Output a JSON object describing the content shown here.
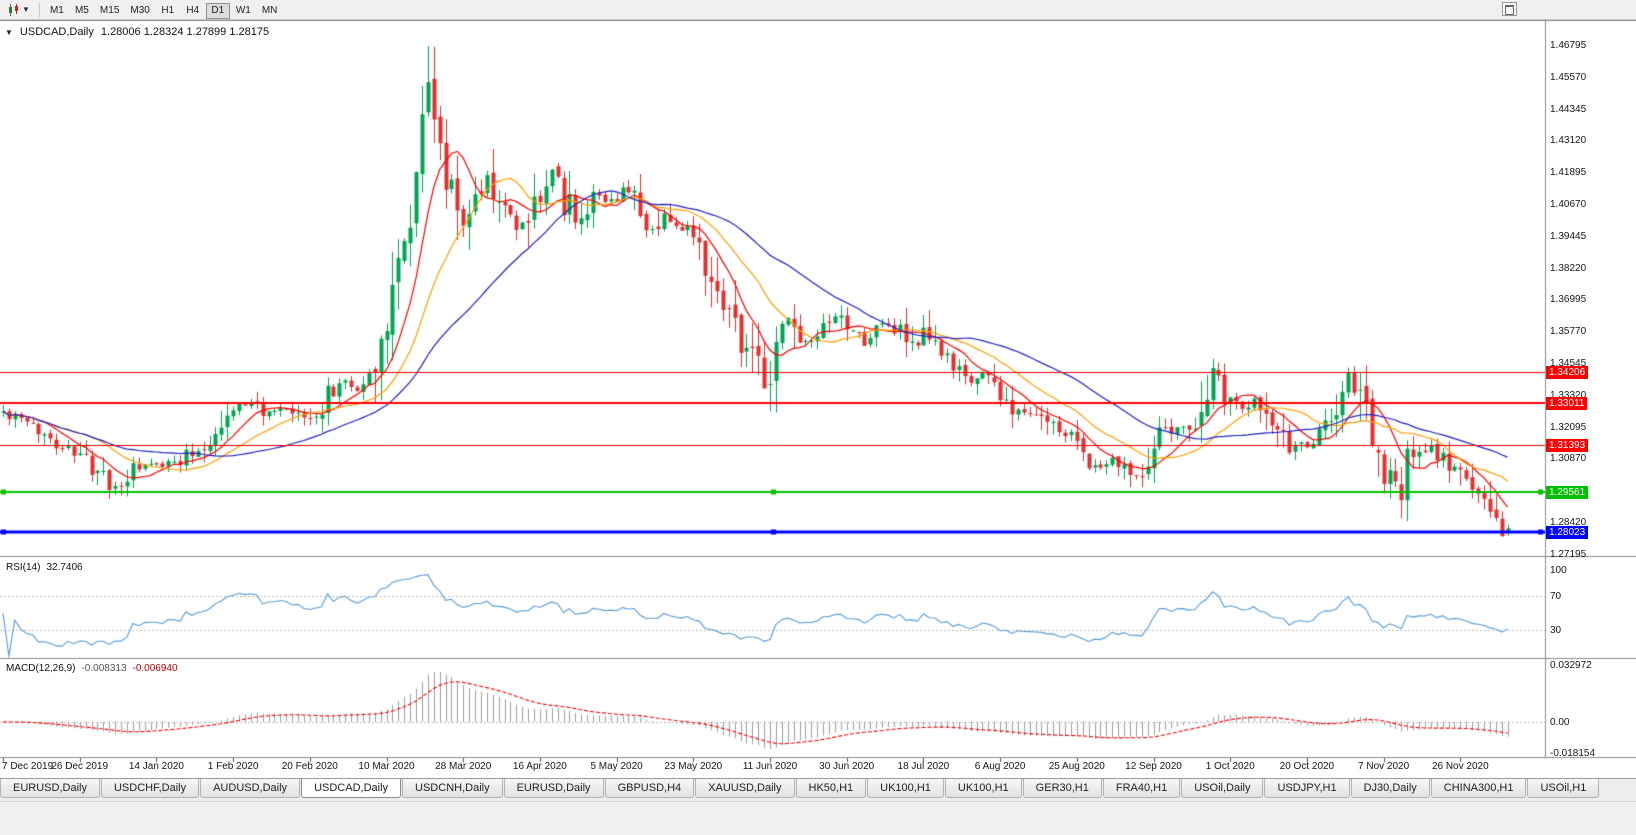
{
  "toolbar": {
    "chart_type_icon": "candlestick-chart-icon",
    "dropdown_icon": "chevron-down-icon",
    "timeframes": [
      "M1",
      "M5",
      "M15",
      "M30",
      "H1",
      "H4",
      "D1",
      "W1",
      "MN"
    ],
    "active_timeframe": "D1",
    "window_button_icon": "window-icon"
  },
  "chart": {
    "legend_symbol": "USDCAD,Daily",
    "legend_ohlc": "1.28006 1.28324 1.27899 1.28175",
    "one_click_icon": "triangle-down-icon"
  },
  "indicators": {
    "rsi": {
      "label": "RSI(14)",
      "value": "32.7406",
      "axis_labels": [
        "100",
        "70",
        "30"
      ],
      "axis_values": [
        100,
        70,
        30
      ],
      "levels": [
        70,
        30
      ],
      "range": [
        0,
        112
      ],
      "line_color": "#5b9bd5"
    },
    "macd": {
      "label": "MACD(12,26,9)",
      "value_main": "-0.008313",
      "value_signal": "-0.006940",
      "axis_labels": [
        "0.032972",
        "0.00",
        "-0.018154"
      ],
      "axis_values": [
        0.032972,
        0,
        -0.018154
      ],
      "range": [
        -0.0193,
        0.0355
      ],
      "histogram_color": "#9e9e9e",
      "signal_color": "#ff0000",
      "fast": 12,
      "slow": 26,
      "signal_period": 9
    }
  },
  "chart_data": {
    "type": "candlestick",
    "symbol": "USDCAD",
    "timeframe": "Daily",
    "up_color": "#00a651",
    "down_color": "#e53030",
    "num_candles": 256,
    "candles_per_label": 13,
    "last_candle": {
      "open": 1.28006,
      "high": 1.28324,
      "low": 1.27899,
      "close": 1.28175
    },
    "extreme_high": [
      72,
      1.4676
    ],
    "extreme_low_early": [
      18,
      1.2952
    ],
    "price_axis": {
      "labels": [
        "1.46795",
        "1.45570",
        "1.44345",
        "1.43120",
        "1.41895",
        "1.40670",
        "1.39445",
        "1.38220",
        "1.36995",
        "1.35770",
        "1.34545",
        "1.33320",
        "1.32095",
        "1.30870",
        "1.29645",
        "1.28420",
        "1.27195"
      ],
      "top": 1.4757,
      "bottom": 1.2715
    },
    "x_axis_dates": [
      "7 Dec 2019",
      "26 Dec 2019",
      "14 Jan 2020",
      "1 Feb 2020",
      "20 Feb 2020",
      "10 Mar 2020",
      "28 Mar 2020",
      "16 Apr 2020",
      "5 May 2020",
      "23 May 2020",
      "11 Jun 2020",
      "30 Jun 2020",
      "18 Jul 2020",
      "6 Aug 2020",
      "25 Aug 2020",
      "12 Sep 2020",
      "1 Oct 2020",
      "20 Oct 2020",
      "7 Nov 2020",
      "26 Nov 2020"
    ],
    "moving_averages": [
      {
        "name": "fast-ma",
        "period": 8,
        "color": "#ff0000"
      },
      {
        "name": "medium-ma",
        "period": 17,
        "color": "#ffa000"
      },
      {
        "name": "slow-ma",
        "period": 34,
        "color": "#2222cc"
      }
    ],
    "hlines": [
      {
        "price": 1.34206,
        "label": "1.34206",
        "color": "#ff0000",
        "width": 1,
        "selected": false
      },
      {
        "price": 1.33011,
        "label": "1.33011",
        "color": "#ff0000",
        "width": 2,
        "selected": false
      },
      {
        "price": 1.31393,
        "label": "1.31393",
        "color": "#ff0000",
        "width": 1,
        "selected": false
      },
      {
        "price": 1.29561,
        "label": "1.29561",
        "color": "#00c000",
        "width": 2,
        "selected": true
      },
      {
        "price": 1.28023,
        "label": "1.28023",
        "color": "#0000ff",
        "width": 3,
        "selected": true
      }
    ],
    "close_anchors": [
      [
        0,
        1.3265
      ],
      [
        4,
        1.322
      ],
      [
        8,
        1.3165
      ],
      [
        13,
        1.3095
      ],
      [
        16,
        1.303
      ],
      [
        18,
        1.2965
      ],
      [
        20,
        1.299
      ],
      [
        23,
        1.3055
      ],
      [
        26,
        1.306
      ],
      [
        30,
        1.3085
      ],
      [
        34,
        1.314
      ],
      [
        37,
        1.3215
      ],
      [
        39,
        1.329
      ],
      [
        42,
        1.33
      ],
      [
        45,
        1.3255
      ],
      [
        48,
        1.327
      ],
      [
        52,
        1.323
      ],
      [
        54,
        1.33
      ],
      [
        57,
        1.3385
      ],
      [
        60,
        1.335
      ],
      [
        62,
        1.3395
      ],
      [
        64,
        1.356
      ],
      [
        66,
        1.3745
      ],
      [
        68,
        1.392
      ],
      [
        70,
        1.418
      ],
      [
        71,
        1.444
      ],
      [
        72,
        1.456
      ],
      [
        73,
        1.439
      ],
      [
        74,
        1.429
      ],
      [
        75,
        1.408
      ],
      [
        76,
        1.416
      ],
      [
        78,
        1.399
      ],
      [
        80,
        1.409
      ],
      [
        82,
        1.4175
      ],
      [
        84,
        1.408
      ],
      [
        86,
        1.401
      ],
      [
        88,
        1.3975
      ],
      [
        90,
        1.408
      ],
      [
        93,
        1.42
      ],
      [
        95,
        1.409
      ],
      [
        97,
        1.399
      ],
      [
        99,
        1.406
      ],
      [
        101,
        1.411
      ],
      [
        104,
        1.406
      ],
      [
        106,
        1.412
      ],
      [
        108,
        1.402
      ],
      [
        110,
        1.397
      ],
      [
        112,
        1.404
      ],
      [
        114,
        1.396
      ],
      [
        117,
        1.3975
      ],
      [
        119,
        1.386
      ],
      [
        121,
        1.376
      ],
      [
        123,
        1.367
      ],
      [
        125,
        1.356
      ],
      [
        127,
        1.347
      ],
      [
        129,
        1.3385
      ],
      [
        130,
        1.3375
      ],
      [
        131,
        1.3565
      ],
      [
        133,
        1.362
      ],
      [
        135,
        1.354
      ],
      [
        137,
        1.3525
      ],
      [
        139,
        1.357
      ],
      [
        141,
        1.3625
      ],
      [
        143,
        1.358
      ],
      [
        146,
        1.3535
      ],
      [
        149,
        1.3605
      ],
      [
        152,
        1.3575
      ],
      [
        155,
        1.3495
      ],
      [
        156,
        1.356
      ],
      [
        158,
        1.3505
      ],
      [
        161,
        1.3435
      ],
      [
        164,
        1.338
      ],
      [
        166,
        1.3425
      ],
      [
        169,
        1.333
      ],
      [
        172,
        1.3255
      ],
      [
        175,
        1.327
      ],
      [
        178,
        1.3205
      ],
      [
        181,
        1.317
      ],
      [
        182,
        1.3155
      ],
      [
        184,
        1.3085
      ],
      [
        186,
        1.3055
      ],
      [
        188,
        1.3095
      ],
      [
        190,
        1.306
      ],
      [
        192,
        1.3025
      ],
      [
        195,
        1.316
      ],
      [
        197,
        1.3195
      ],
      [
        199,
        1.3215
      ],
      [
        201,
        1.3185
      ],
      [
        203,
        1.33
      ],
      [
        205,
        1.3415
      ],
      [
        206,
        1.338
      ],
      [
        208,
        1.331
      ],
      [
        210,
        1.3285
      ],
      [
        212,
        1.3315
      ],
      [
        214,
        1.3245
      ],
      [
        216,
        1.3185
      ],
      [
        218,
        1.3125
      ],
      [
        220,
        1.3155
      ],
      [
        221,
        1.3125
      ],
      [
        223,
        1.3185
      ],
      [
        225,
        1.3235
      ],
      [
        227,
        1.332
      ],
      [
        228,
        1.3385
      ],
      [
        230,
        1.333
      ],
      [
        232,
        1.3155
      ],
      [
        234,
        1.303
      ],
      [
        236,
        1.2975
      ],
      [
        237,
        1.2955
      ],
      [
        238,
        1.306
      ],
      [
        240,
        1.3105
      ],
      [
        242,
        1.3125
      ],
      [
        244,
        1.3085
      ],
      [
        246,
        1.305
      ],
      [
        247,
        1.3015
      ],
      [
        249,
        1.2985
      ],
      [
        251,
        1.2935
      ],
      [
        252,
        1.2885
      ],
      [
        253,
        1.2835
      ],
      [
        254,
        1.2795
      ],
      [
        255,
        1.28175
      ]
    ]
  },
  "tabs": [
    {
      "label": "EURUSD,Daily",
      "active": false
    },
    {
      "label": "USDCHF,Daily",
      "active": false
    },
    {
      "label": "AUDUSD,Daily",
      "active": false
    },
    {
      "label": "USDCAD,Daily",
      "active": true
    },
    {
      "label": "USDCNH,Daily",
      "active": false
    },
    {
      "label": "EURUSD,Daily",
      "active": false
    },
    {
      "label": "GBPUSD,H4",
      "active": false
    },
    {
      "label": "XAUUSD,Daily",
      "active": false
    },
    {
      "label": "HK50,H1",
      "active": false
    },
    {
      "label": "UK100,H1",
      "active": false
    },
    {
      "label": "UK100,H1",
      "active": false
    },
    {
      "label": "GER30,H1",
      "active": false
    },
    {
      "label": "FRA40,H1",
      "active": false
    },
    {
      "label": "USOil,Daily",
      "active": false
    },
    {
      "label": "USDJPY,H1",
      "active": false
    },
    {
      "label": "DJ30,Daily",
      "active": false
    },
    {
      "label": "CHINA300,H1",
      "active": false
    },
    {
      "label": "USOil,H1",
      "active": false
    }
  ],
  "colors": {
    "background": "#ffffff",
    "panel_border": "#8c8c8c",
    "axis_text": "#161616",
    "level_dash": "#bdbdbd"
  }
}
